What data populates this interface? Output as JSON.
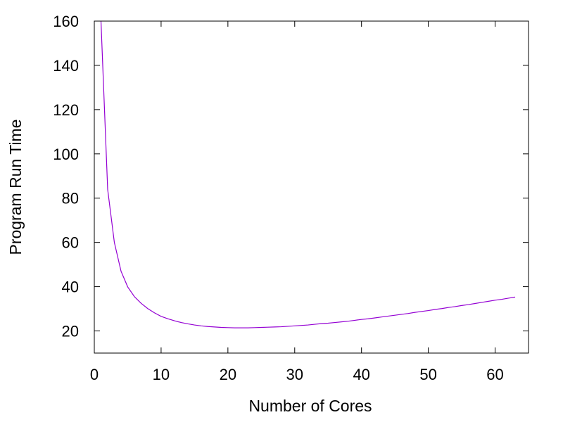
{
  "chart_data": {
    "type": "line",
    "title": "",
    "xlabel": "Number of Cores",
    "ylabel": "Program Run Time",
    "xlim": [
      0,
      65
    ],
    "ylim": [
      10,
      160
    ],
    "x_ticks": [
      0,
      10,
      20,
      30,
      40,
      50,
      60
    ],
    "y_ticks": [
      20,
      40,
      60,
      80,
      100,
      120,
      140,
      160
    ],
    "grid": false,
    "legend": "none",
    "series": [
      {
        "color": "#9400d3",
        "x": [
          1,
          2,
          3,
          4,
          5,
          6,
          7,
          8,
          9,
          10,
          11,
          12,
          13,
          14,
          15,
          16,
          17,
          18,
          19,
          20,
          21,
          22,
          23,
          24,
          25,
          26,
          27,
          28,
          29,
          30,
          31,
          32,
          33,
          34,
          35,
          36,
          37,
          38,
          39,
          40,
          41,
          42,
          43,
          44,
          45,
          46,
          47,
          48,
          49,
          50,
          51,
          52,
          53,
          54,
          55,
          56,
          57,
          58,
          59,
          60,
          61,
          62,
          63
        ],
        "y": [
          160.5,
          84.0,
          60.0,
          47.0,
          39.9,
          35.5,
          32.5,
          30.1,
          28.2,
          26.6,
          25.5,
          24.6,
          23.8,
          23.2,
          22.7,
          22.3,
          22.0,
          21.8,
          21.6,
          21.5,
          21.4,
          21.4,
          21.4,
          21.5,
          21.6,
          21.7,
          21.8,
          21.9,
          22.1,
          22.3,
          22.5,
          22.7,
          23.0,
          23.3,
          23.5,
          23.8,
          24.1,
          24.4,
          24.8,
          25.2,
          25.5,
          25.9,
          26.3,
          26.7,
          27.1,
          27.5,
          27.9,
          28.4,
          28.8,
          29.2,
          29.7,
          30.1,
          30.6,
          31.0,
          31.5,
          31.9,
          32.4,
          32.9,
          33.4,
          33.9,
          34.3,
          34.8,
          35.3
        ]
      }
    ]
  }
}
